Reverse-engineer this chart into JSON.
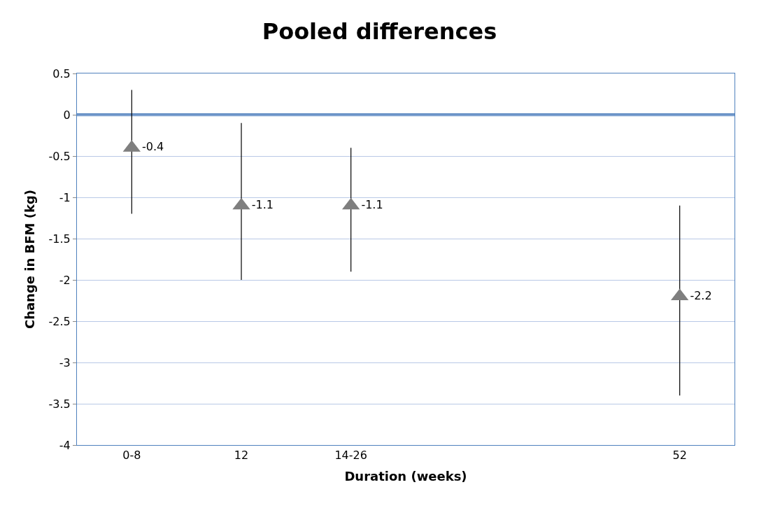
{
  "chart_data": {
    "type": "scatter",
    "title": "Pooled differences",
    "xlabel": "Duration (weeks)",
    "ylabel": "Change in BFM (kg)",
    "categories": [
      "0-8",
      "12",
      "14-26",
      null,
      null,
      "52"
    ],
    "series": [
      {
        "color": "#7f7f7f",
        "values": [
          -0.4,
          -1.1,
          -1.1,
          null,
          null,
          -2.2
        ],
        "errors": [
          [
            -1.2,
            0.3
          ],
          [
            -2.0,
            -0.1
          ],
          [
            -1.9,
            -0.4
          ],
          null,
          null,
          [
            -3.4,
            -1.1
          ]
        ]
      }
    ],
    "ylim": [
      -4,
      0.5
    ],
    "yticks": [
      -4,
      -3.5,
      -3,
      -2.5,
      -2,
      -1.5,
      -1,
      -0.5,
      0,
      0.5
    ],
    "ref_lines": [
      {
        "axis": "y",
        "value": 0,
        "color": "#4f81bd"
      }
    ],
    "grid": "y",
    "marker": "triangle",
    "data_labels": true,
    "legend": false
  }
}
